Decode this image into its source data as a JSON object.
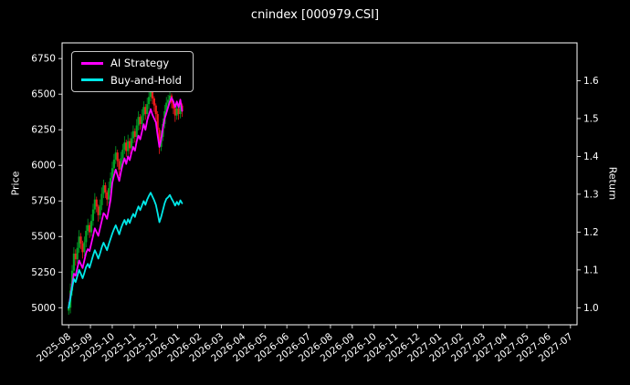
{
  "window": {
    "title": "cnindex [000979.CSI]"
  },
  "chart_data": {
    "type": "candlestick+line",
    "title": "cnindex [000979.CSI]",
    "background": "#000000",
    "text_color": "#ffffff",
    "grid": false,
    "legend_position": "upper-left",
    "x_tick_labels": [
      "2025-08",
      "2025-09",
      "2025-10",
      "2025-11",
      "2025-12",
      "2026-01",
      "2026-02",
      "2026-03",
      "2026-04",
      "2026-05",
      "2026-06",
      "2026-07",
      "2026-08",
      "2026-09",
      "2026-10",
      "2026-11",
      "2026-12",
      "2027-01",
      "2027-02",
      "2027-03",
      "2027-04",
      "2027-05",
      "2027-06",
      "2027-07"
    ],
    "xlim_months": [
      -0.3,
      23.3
    ],
    "price_axis": {
      "label": "Price",
      "tick_values": [
        5000,
        5250,
        5500,
        5750,
        6000,
        6250,
        6500,
        6750
      ],
      "lim": [
        4880,
        6860
      ]
    },
    "return_axis": {
      "label": "Return",
      "tick_values": [
        1.0,
        1.1,
        1.2,
        1.3,
        1.4,
        1.5,
        1.6
      ],
      "tick_labels": [
        "1.0",
        "1.1",
        "1.2",
        "1.3",
        "1.4",
        "1.5",
        "1.6"
      ],
      "lim": [
        0.955,
        1.7
      ]
    },
    "t_months": [
      0,
      0.08,
      0.16,
      0.24,
      0.32,
      0.4,
      0.48,
      0.56,
      0.64,
      0.72,
      0.8,
      0.88,
      0.96,
      1.04,
      1.12,
      1.2,
      1.28,
      1.36,
      1.44,
      1.52,
      1.6,
      1.68,
      1.76,
      1.84,
      1.92,
      2,
      2.08,
      2.16,
      2.24,
      2.32,
      2.4,
      2.48,
      2.56,
      2.64,
      2.72,
      2.8,
      2.88,
      2.96,
      3.04,
      3.12,
      3.2,
      3.28,
      3.36,
      3.44,
      3.52,
      3.6,
      3.68,
      3.76,
      3.84,
      3.92,
      4,
      4.08,
      4.16,
      4.24,
      4.32,
      4.4,
      4.48,
      4.56,
      4.64,
      4.72,
      4.8,
      4.88,
      4.96,
      5.04,
      5.12,
      5.2
    ],
    "candles": {
      "up_color": "#00a226",
      "down_color": "#f21b1b",
      "ohlc": [
        [
          4980,
          5040,
          4950,
          5000
        ],
        [
          5000,
          5170,
          4960,
          5120
        ],
        [
          5120,
          5300,
          5085,
          5260
        ],
        [
          5260,
          5425,
          5220,
          5380
        ],
        [
          5380,
          5410,
          5295,
          5340
        ],
        [
          5340,
          5460,
          5310,
          5420
        ],
        [
          5420,
          5545,
          5385,
          5500
        ],
        [
          5500,
          5525,
          5410,
          5450
        ],
        [
          5450,
          5470,
          5345,
          5390
        ],
        [
          5390,
          5500,
          5360,
          5460
        ],
        [
          5460,
          5580,
          5425,
          5540
        ],
        [
          5540,
          5625,
          5510,
          5580
        ],
        [
          5580,
          5600,
          5490,
          5530
        ],
        [
          5530,
          5655,
          5500,
          5610
        ],
        [
          5610,
          5730,
          5575,
          5690
        ],
        [
          5690,
          5805,
          5660,
          5760
        ],
        [
          5760,
          5780,
          5670,
          5710
        ],
        [
          5710,
          5725,
          5605,
          5650
        ],
        [
          5650,
          5760,
          5620,
          5720
        ],
        [
          5720,
          5845,
          5685,
          5800
        ],
        [
          5800,
          5900,
          5770,
          5860
        ],
        [
          5860,
          5880,
          5770,
          5810
        ],
        [
          5810,
          5825,
          5715,
          5760
        ],
        [
          5760,
          5885,
          5730,
          5840
        ],
        [
          5840,
          5950,
          5805,
          5910
        ],
        [
          5910,
          6025,
          5880,
          5980
        ],
        [
          5980,
          6080,
          5945,
          6040
        ],
        [
          6040,
          6135,
          6010,
          6090
        ],
        [
          6090,
          6110,
          5990,
          6030
        ],
        [
          6030,
          6045,
          5925,
          5970
        ],
        [
          5970,
          6095,
          5940,
          6050
        ],
        [
          6050,
          6150,
          6015,
          6110
        ],
        [
          6110,
          6205,
          6080,
          6160
        ],
        [
          6160,
          6180,
          6060,
          6100
        ],
        [
          6100,
          6215,
          6070,
          6170
        ],
        [
          6170,
          6190,
          6080,
          6120
        ],
        [
          6120,
          6235,
          6090,
          6190
        ],
        [
          6190,
          6280,
          6155,
          6240
        ],
        [
          6240,
          6260,
          6160,
          6200
        ],
        [
          6200,
          6325,
          6170,
          6280
        ],
        [
          6280,
          6380,
          6245,
          6340
        ],
        [
          6340,
          6360,
          6250,
          6290
        ],
        [
          6290,
          6395,
          6260,
          6350
        ],
        [
          6350,
          6450,
          6315,
          6410
        ],
        [
          6410,
          6430,
          6320,
          6360
        ],
        [
          6360,
          6475,
          6330,
          6430
        ],
        [
          6430,
          6520,
          6395,
          6480
        ],
        [
          6480,
          6565,
          6450,
          6520
        ],
        [
          6520,
          6540,
          6430,
          6470
        ],
        [
          6470,
          6485,
          6375,
          6420
        ],
        [
          6420,
          6435,
          6320,
          6360
        ],
        [
          6360,
          6380,
          6205,
          6250
        ],
        [
          6250,
          6265,
          6080,
          6130
        ],
        [
          6130,
          6245,
          6100,
          6200
        ],
        [
          6200,
          6330,
          6170,
          6290
        ],
        [
          6290,
          6425,
          6260,
          6380
        ],
        [
          6380,
          6480,
          6350,
          6440
        ],
        [
          6440,
          6495,
          6410,
          6460
        ],
        [
          6460,
          6535,
          6430,
          6490
        ],
        [
          6490,
          6505,
          6400,
          6440
        ],
        [
          6440,
          6455,
          6360,
          6400
        ],
        [
          6400,
          6415,
          6305,
          6350
        ],
        [
          6350,
          6440,
          6320,
          6400
        ],
        [
          6400,
          6415,
          6320,
          6360
        ],
        [
          6360,
          6460,
          6330,
          6420
        ],
        [
          6420,
          6435,
          6340,
          6380
        ]
      ]
    },
    "series": [
      {
        "name": "AI Strategy",
        "color": "#ff00ff",
        "axis": "return",
        "values": [
          1.0,
          1.03,
          1.06,
          1.09,
          1.085,
          1.105,
          1.125,
          1.115,
          1.105,
          1.125,
          1.145,
          1.155,
          1.15,
          1.17,
          1.19,
          1.21,
          1.2,
          1.19,
          1.21,
          1.23,
          1.25,
          1.245,
          1.235,
          1.26,
          1.285,
          1.33,
          1.35,
          1.365,
          1.35,
          1.335,
          1.36,
          1.38,
          1.395,
          1.38,
          1.4,
          1.39,
          1.41,
          1.425,
          1.415,
          1.44,
          1.455,
          1.445,
          1.465,
          1.485,
          1.47,
          1.495,
          1.51,
          1.525,
          1.51,
          1.5,
          1.49,
          1.455,
          1.425,
          1.445,
          1.475,
          1.5,
          1.515,
          1.53,
          1.545,
          1.555,
          1.545,
          1.53,
          1.545,
          1.53,
          1.55,
          1.52
        ]
      },
      {
        "name": "Buy-and-Hold",
        "color": "#00e8e8",
        "axis": "return",
        "values": [
          1.0,
          1.024,
          1.052,
          1.076,
          1.068,
          1.084,
          1.1,
          1.09,
          1.078,
          1.092,
          1.108,
          1.116,
          1.106,
          1.122,
          1.138,
          1.152,
          1.142,
          1.13,
          1.144,
          1.16,
          1.172,
          1.162,
          1.152,
          1.168,
          1.182,
          1.196,
          1.208,
          1.218,
          1.206,
          1.194,
          1.21,
          1.222,
          1.232,
          1.22,
          1.234,
          1.224,
          1.238,
          1.248,
          1.24,
          1.256,
          1.268,
          1.258,
          1.27,
          1.282,
          1.272,
          1.286,
          1.296,
          1.304,
          1.294,
          1.284,
          1.272,
          1.25,
          1.226,
          1.24,
          1.258,
          1.276,
          1.288,
          1.292,
          1.298,
          1.288,
          1.28,
          1.27,
          1.28,
          1.272,
          1.284,
          1.276
        ]
      }
    ]
  }
}
